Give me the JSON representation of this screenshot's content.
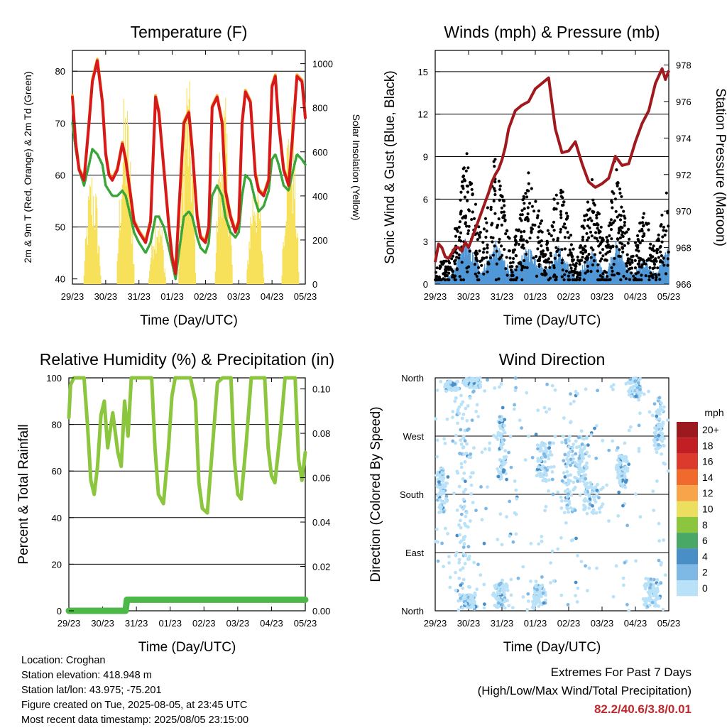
{
  "chart_data": [
    {
      "id": "temperature",
      "type": "line",
      "title": "Temperature (F)",
      "xlabel": "Time (Day/UTC)",
      "ylabel": "2m & 9m T (Red, Orange) & 2m Td (Green)",
      "y2label": "Solar Insolation (Yellow)",
      "x_ticks": [
        "29/23",
        "30/23",
        "31/23",
        "01/23",
        "02/23",
        "03/23",
        "04/23",
        "05/23"
      ],
      "ylim": [
        39,
        84
      ],
      "y_ticks": [
        40,
        50,
        60,
        70,
        80
      ],
      "y2lim": [
        0,
        1060
      ],
      "y2_ticks": [
        0,
        200,
        400,
        600,
        800,
        1000
      ],
      "grid_y": [
        50,
        60,
        70,
        80
      ],
      "colors": {
        "t2m": "#d7191c",
        "t9m": "#f5a623",
        "td": "#3aa63a",
        "solar": "#f7e05a"
      },
      "x_days": [
        0,
        0.1,
        0.2,
        0.35,
        0.5,
        0.6,
        0.75,
        0.9,
        1.0,
        1.1,
        1.2,
        1.35,
        1.5,
        1.6,
        1.75,
        1.85,
        2.0,
        2.1,
        2.2,
        2.35,
        2.5,
        2.6,
        2.75,
        2.9,
        3.0,
        3.1,
        3.2,
        3.35,
        3.5,
        3.6,
        3.75,
        3.85,
        4.0,
        4.1,
        4.2,
        4.35,
        4.5,
        4.6,
        4.75,
        4.9,
        5.0,
        5.1,
        5.2,
        5.35,
        5.5,
        5.6,
        5.75,
        5.9,
        6.0,
        6.1,
        6.2,
        6.35,
        6.5,
        6.6,
        6.75,
        6.9,
        7.0
      ],
      "series": [
        {
          "key": "t2m",
          "values": [
            75,
            66,
            61,
            59,
            70,
            78,
            82,
            74,
            64,
            60,
            59,
            61,
            66,
            63,
            56,
            51,
            49,
            48,
            47,
            51,
            75,
            72,
            61,
            50,
            44,
            41,
            53,
            70,
            72,
            65,
            52,
            48,
            47,
            50,
            73,
            75,
            70,
            57,
            52,
            49,
            51,
            70,
            76,
            74,
            60,
            57,
            56,
            59,
            77,
            79,
            70,
            61,
            58,
            66,
            79,
            78,
            71
          ]
        },
        {
          "key": "td",
          "values": [
            70,
            65,
            61,
            58,
            62,
            65,
            64,
            62,
            58,
            57,
            56,
            56,
            57,
            56,
            52,
            49,
            47,
            46,
            45,
            47,
            52,
            52,
            50,
            46,
            43,
            40,
            45,
            52,
            53,
            52,
            48,
            46,
            45,
            47,
            56,
            58,
            56,
            52,
            49,
            48,
            49,
            56,
            60,
            59,
            55,
            53,
            54,
            57,
            63,
            64,
            62,
            58,
            57,
            60,
            64,
            63,
            62
          ]
        }
      ],
      "solar_peaks": [
        {
          "day": 0.6,
          "value": 560
        },
        {
          "day": 1.6,
          "value": 900
        },
        {
          "day": 2.55,
          "value": 400
        },
        {
          "day": 3.45,
          "value": 1020
        },
        {
          "day": 4.55,
          "value": 890
        },
        {
          "day": 5.5,
          "value": 560
        },
        {
          "day": 6.55,
          "value": 860
        }
      ]
    },
    {
      "id": "winds",
      "type": "scatter",
      "title": "Winds (mph) & Pressure (mb)",
      "xlabel": "Time (Day/UTC)",
      "ylabel": "Sonic Wind & Gust (Blue, Black)",
      "y2label": "Station Pressure (Maroon)",
      "x_ticks": [
        "29/23",
        "30/23",
        "31/23",
        "01/23",
        "02/23",
        "03/23",
        "04/23",
        "05/23"
      ],
      "ylim": [
        0,
        16.5
      ],
      "y_ticks": [
        0,
        3,
        6,
        9,
        12,
        15
      ],
      "y2lim": [
        966,
        978.8
      ],
      "y2_ticks": [
        966,
        968,
        970,
        972,
        974,
        976,
        978
      ],
      "grid_y": [
        3,
        6,
        9,
        12,
        15
      ],
      "colors": {
        "gust": "#000000",
        "wind": "#4f97d6",
        "pressure": "#a0191c"
      },
      "gust_envelope": [
        {
          "day": 0,
          "value": 0.8
        },
        {
          "day": 0.5,
          "value": 2
        },
        {
          "day": 0.9,
          "value": 9.5
        },
        {
          "day": 1.4,
          "value": 3
        },
        {
          "day": 1.8,
          "value": 9
        },
        {
          "day": 2.3,
          "value": 2.5
        },
        {
          "day": 2.8,
          "value": 8
        },
        {
          "day": 3.3,
          "value": 3
        },
        {
          "day": 3.7,
          "value": 8
        },
        {
          "day": 4.2,
          "value": 1.5
        },
        {
          "day": 4.7,
          "value": 7.5
        },
        {
          "day": 5.1,
          "value": 2
        },
        {
          "day": 5.4,
          "value": 9
        },
        {
          "day": 5.9,
          "value": 2
        },
        {
          "day": 6.3,
          "value": 5.5
        },
        {
          "day": 6.6,
          "value": 2
        },
        {
          "day": 7.0,
          "value": 8
        }
      ],
      "pressure": {
        "x_days": [
          0,
          0.1,
          0.2,
          0.3,
          0.4,
          0.5,
          0.6,
          0.7,
          0.8,
          0.9,
          1.0,
          1.1,
          1.2,
          1.3,
          1.4,
          1.5,
          1.6,
          1.7,
          1.8,
          1.9,
          2.0,
          2.1,
          2.2,
          2.4,
          2.6,
          2.8,
          3.0,
          3.2,
          3.4,
          3.6,
          3.8,
          4.0,
          4.2,
          4.4,
          4.6,
          4.8,
          5.0,
          5.2,
          5.4,
          5.6,
          5.8,
          6.0,
          6.2,
          6.4,
          6.6,
          6.8,
          6.9,
          7.0
        ],
        "values": [
          967.2,
          968.2,
          968.0,
          967.5,
          967.4,
          967.7,
          968.0,
          968.0,
          967.8,
          968.3,
          968.0,
          968.5,
          969.0,
          969.5,
          970.0,
          970.5,
          971.0,
          971.6,
          972.0,
          972.3,
          972.8,
          973.5,
          974.5,
          975.5,
          975.8,
          976.0,
          976.7,
          977.0,
          977.3,
          974.5,
          973.2,
          973.3,
          973.8,
          972.6,
          971.6,
          971.3,
          971.5,
          971.8,
          973.0,
          972.5,
          972.6,
          973.8,
          974.8,
          975.5,
          977.0,
          977.8,
          977.2,
          977.7
        ]
      }
    },
    {
      "id": "humidity",
      "type": "line",
      "title": "Relative Humidity (%) & Precipitation (in)",
      "xlabel": "Time (Day/UTC)",
      "ylabel": "Percent & Total Rainfall",
      "x_ticks": [
        "29/23",
        "30/23",
        "31/23",
        "01/23",
        "02/23",
        "03/23",
        "04/23",
        "05/23"
      ],
      "ylim": [
        0,
        100
      ],
      "y_ticks": [
        0,
        20,
        40,
        60,
        80,
        100
      ],
      "y2lim": [
        0,
        0.105
      ],
      "y2_ticks": [
        "0.00",
        "0.02",
        "0.04",
        "0.06",
        "0.08",
        "0.10"
      ],
      "grid_y": [
        20,
        40,
        60,
        80
      ],
      "colors": {
        "rh": "#8cc63f",
        "precip": "#4db748"
      },
      "rh": {
        "x_days": [
          0,
          0.05,
          0.15,
          0.3,
          0.45,
          0.55,
          0.65,
          0.75,
          0.85,
          0.95,
          1.05,
          1.15,
          1.3,
          1.45,
          1.55,
          1.65,
          1.75,
          1.85,
          2.0,
          2.15,
          2.3,
          2.45,
          2.55,
          2.65,
          2.8,
          2.95,
          3.05,
          3.15,
          3.3,
          3.45,
          3.6,
          3.75,
          3.85,
          3.95,
          4.1,
          4.25,
          4.4,
          4.55,
          4.7,
          4.8,
          4.9,
          5.0,
          5.1,
          5.25,
          5.4,
          5.55,
          5.7,
          5.8,
          5.9,
          6.0,
          6.1,
          6.25,
          6.4,
          6.55,
          6.7,
          6.8,
          6.9,
          7.0
        ],
        "values": [
          83,
          97,
          100,
          100,
          100,
          80,
          56,
          50,
          62,
          84,
          90,
          70,
          85,
          68,
          62,
          90,
          75,
          100,
          100,
          100,
          100,
          100,
          70,
          50,
          46,
          70,
          92,
          100,
          100,
          100,
          100,
          90,
          55,
          44,
          42,
          70,
          98,
          100,
          100,
          100,
          65,
          50,
          48,
          72,
          100,
          100,
          100,
          100,
          70,
          58,
          55,
          75,
          100,
          100,
          100,
          65,
          56,
          68
        ]
      },
      "precip": {
        "x_days": [
          0,
          1.68,
          1.72,
          7.0
        ],
        "values": [
          0.0,
          0.0,
          0.005,
          0.005
        ]
      }
    },
    {
      "id": "direction",
      "type": "scatter",
      "title": "Wind Direction",
      "xlabel": "Time (Day/UTC)",
      "ylabel": "Direction (Colored By Speed)",
      "x_ticks": [
        "29/23",
        "30/23",
        "31/23",
        "01/23",
        "02/23",
        "03/23",
        "04/23",
        "05/23"
      ],
      "y_ticks": [
        "North",
        "East",
        "South",
        "West",
        "North"
      ],
      "ylim": [
        0,
        360
      ],
      "legend_title": "mph",
      "legend_placement": "right",
      "legend_labels": [
        "20+",
        "18",
        "16",
        "14",
        "12",
        "10",
        "8",
        "6",
        "4",
        "2",
        "0"
      ],
      "legend_colors": [
        "#9c1a1d",
        "#c21f25",
        "#dc3a2c",
        "#f06a2d",
        "#f7a44a",
        "#ecdf60",
        "#8cc63f",
        "#4aa867",
        "#4a8ec7",
        "#7eb9e6",
        "#b9e1f7"
      ]
    }
  ],
  "info": {
    "location": "Location: Croghan",
    "elevation": "Station elevation: 418.948 m",
    "latlon": "Station lat/lon: 43.975; -75.201",
    "created": "Figure created on Tue, 2025-08-05, at 23:45 UTC",
    "recent": "Most recent data timestamp: 2025/08/05 23:15:00"
  },
  "extremes": {
    "title": "Extremes For Past 7 Days",
    "subtitle": "(High/Low/Max Wind/Total Precipitation)",
    "values": "82.2/40.6/3.8/0.01"
  }
}
